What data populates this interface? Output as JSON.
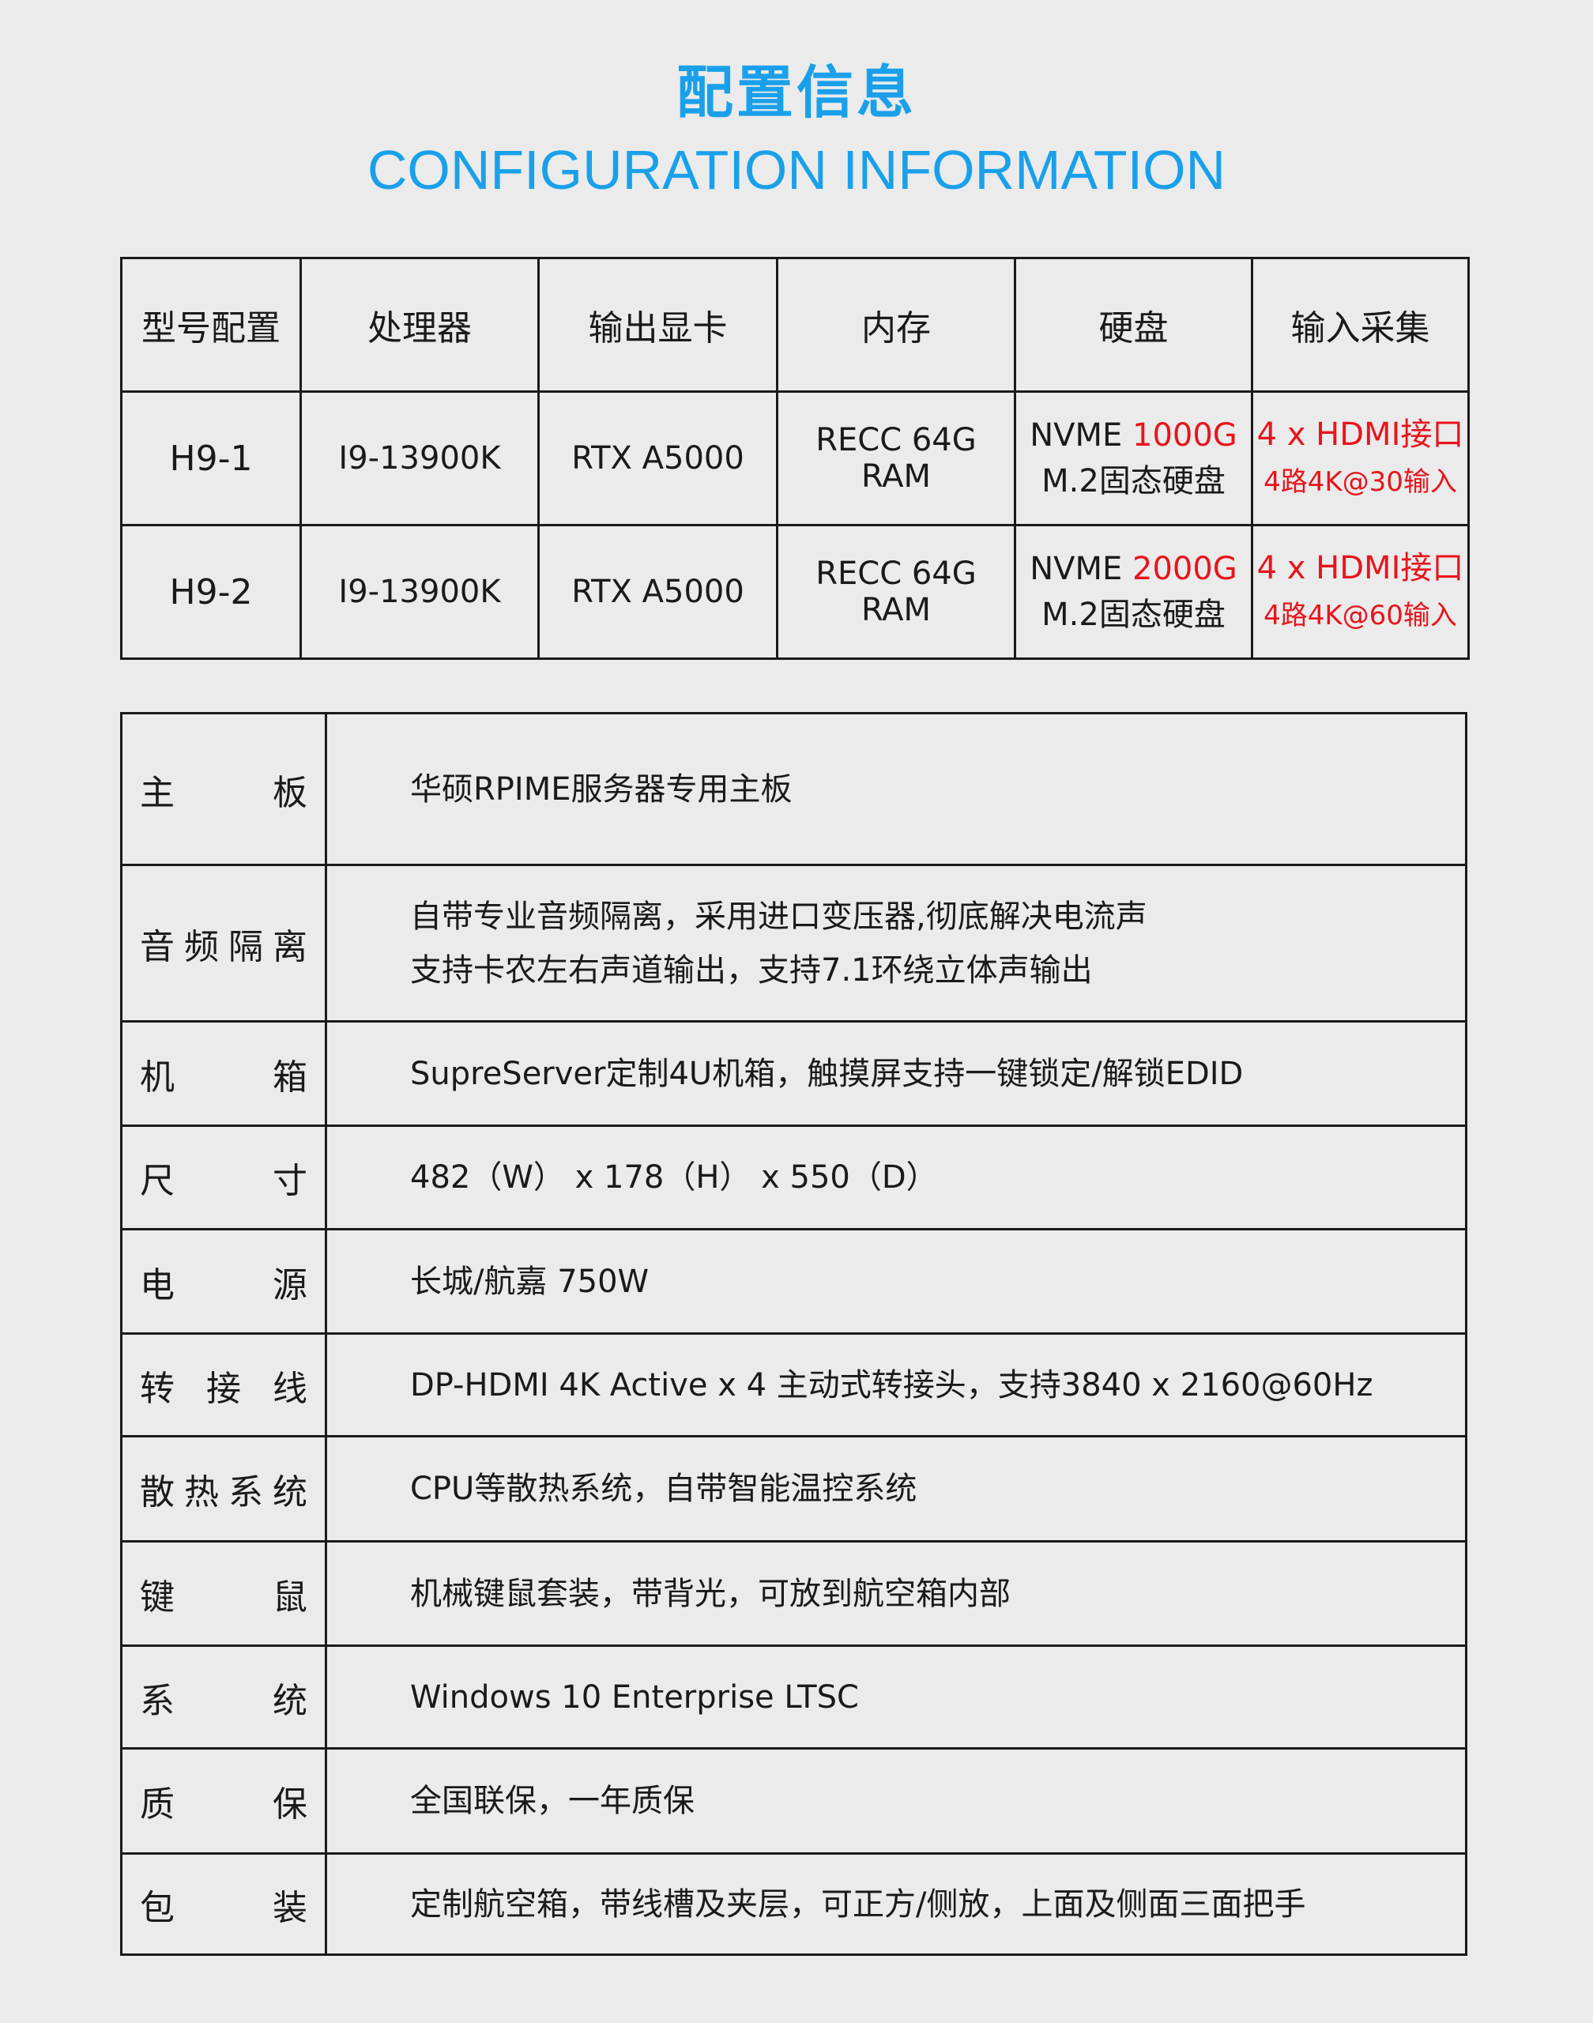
{
  "header": {
    "title_cn": "配置信息",
    "title_en": "CONFIGURATION INFORMATION"
  },
  "models": {
    "columns": [
      "型号配置",
      "处理器",
      "输出显卡",
      "内存",
      "硬盘",
      "输入采集"
    ],
    "rows": [
      {
        "model": "H9-1",
        "cpu": "I9-13900K",
        "gpu": "RTX A5000",
        "ram": "RECC 64G RAM",
        "disk_prefix": "NVME ",
        "disk_size": "1000G",
        "disk_type": "M.2固态硬盘",
        "input_ports": "4 x HDMI接口",
        "input_mode": "4路4K@30输入"
      },
      {
        "model": "H9-2",
        "cpu": "I9-13900K",
        "gpu": "RTX A5000",
        "ram": "RECC 64G RAM",
        "disk_prefix": "NVME ",
        "disk_size": "2000G",
        "disk_type": "M.2固态硬盘",
        "input_ports": "4 x HDMI接口",
        "input_mode": "4路4K@60输入"
      }
    ]
  },
  "specs": [
    {
      "label": "主板",
      "lines": [
        "华硕RPIME服务器专用主板"
      ]
    },
    {
      "label": "音频隔离",
      "lines": [
        "自带专业音频隔离，采用进口变压器,彻底解决电流声",
        "支持卡农左右声道输出，支持7.1环绕立体声输出"
      ]
    },
    {
      "label": "机箱",
      "lines": [
        "SupreServer定制4U机箱，触摸屏支持一键锁定/解锁EDID"
      ]
    },
    {
      "label": "尺寸",
      "lines": [
        "482（W） x 178（H） x 550（D）"
      ]
    },
    {
      "label": "电源",
      "lines": [
        "长城/航嘉 750W"
      ]
    },
    {
      "label": "转接线",
      "lines": [
        "DP-HDMI 4K Active x 4 主动式转接头，支持3840 x 2160@60Hz"
      ]
    },
    {
      "label": "散热系统",
      "lines": [
        "CPU等散热系统，自带智能温控系统"
      ]
    },
    {
      "label": "键鼠",
      "lines": [
        "机械键鼠套装，带背光，可放到航空箱内部"
      ]
    },
    {
      "label": "系统",
      "lines": [
        "Windows 10 Enterprise LTSC"
      ]
    },
    {
      "label": "质保",
      "lines": [
        "全国联保，一年质保"
      ]
    },
    {
      "label": "包装",
      "lines": [
        "定制航空箱，带线槽及夹层，可正方/侧放，上面及侧面三面把手"
      ]
    }
  ],
  "colors": {
    "accent": "#1aa0ea",
    "highlight": "#e8141c",
    "background": "#ebebeb"
  }
}
